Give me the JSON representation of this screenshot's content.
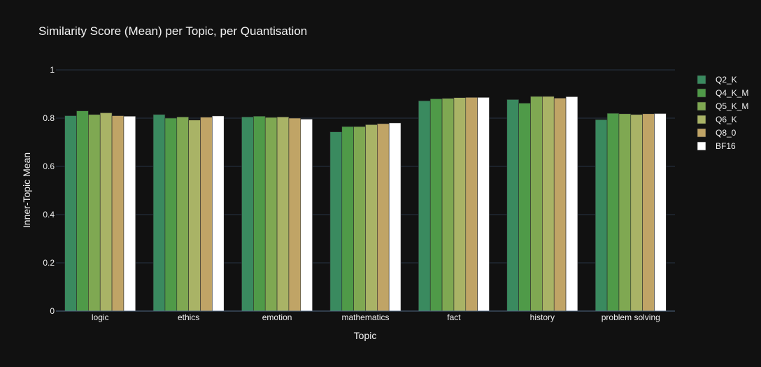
{
  "chart_data": {
    "type": "bar",
    "title": "Similarity Score (Mean) per Topic, per Quantisation",
    "xlabel": "Topic",
    "ylabel": "Inner-Topic Mean",
    "ylim": [
      0,
      1
    ],
    "yticks": [
      0,
      0.2,
      0.4,
      0.6,
      0.8,
      1
    ],
    "ytick_labels": [
      "0",
      "0.2",
      "0.4",
      "0.6",
      "0.8",
      "1"
    ],
    "grid": true,
    "legend_position": "right",
    "categories": [
      "logic",
      "ethics",
      "emotion",
      "mathematics",
      "fact",
      "history",
      "problem solving"
    ],
    "series": [
      {
        "name": "Q2_K",
        "color": "#3a8a5f",
        "values": [
          0.81,
          0.815,
          0.805,
          0.743,
          0.872,
          0.877,
          0.794
        ]
      },
      {
        "name": "Q4_K_M",
        "color": "#4f9a48",
        "values": [
          0.83,
          0.8,
          0.808,
          0.765,
          0.88,
          0.862,
          0.82
        ]
      },
      {
        "name": "Q5_K_M",
        "color": "#7fa852",
        "values": [
          0.815,
          0.805,
          0.803,
          0.765,
          0.882,
          0.89,
          0.818
        ]
      },
      {
        "name": "Q6_K",
        "color": "#a9b366",
        "values": [
          0.822,
          0.792,
          0.805,
          0.773,
          0.885,
          0.89,
          0.815
        ]
      },
      {
        "name": "Q8_0",
        "color": "#c0a466",
        "values": [
          0.81,
          0.804,
          0.8,
          0.777,
          0.886,
          0.883,
          0.818
        ]
      },
      {
        "name": "BF16",
        "color": "#ffffff",
        "values": [
          0.808,
          0.809,
          0.796,
          0.78,
          0.886,
          0.889,
          0.819
        ]
      }
    ]
  }
}
